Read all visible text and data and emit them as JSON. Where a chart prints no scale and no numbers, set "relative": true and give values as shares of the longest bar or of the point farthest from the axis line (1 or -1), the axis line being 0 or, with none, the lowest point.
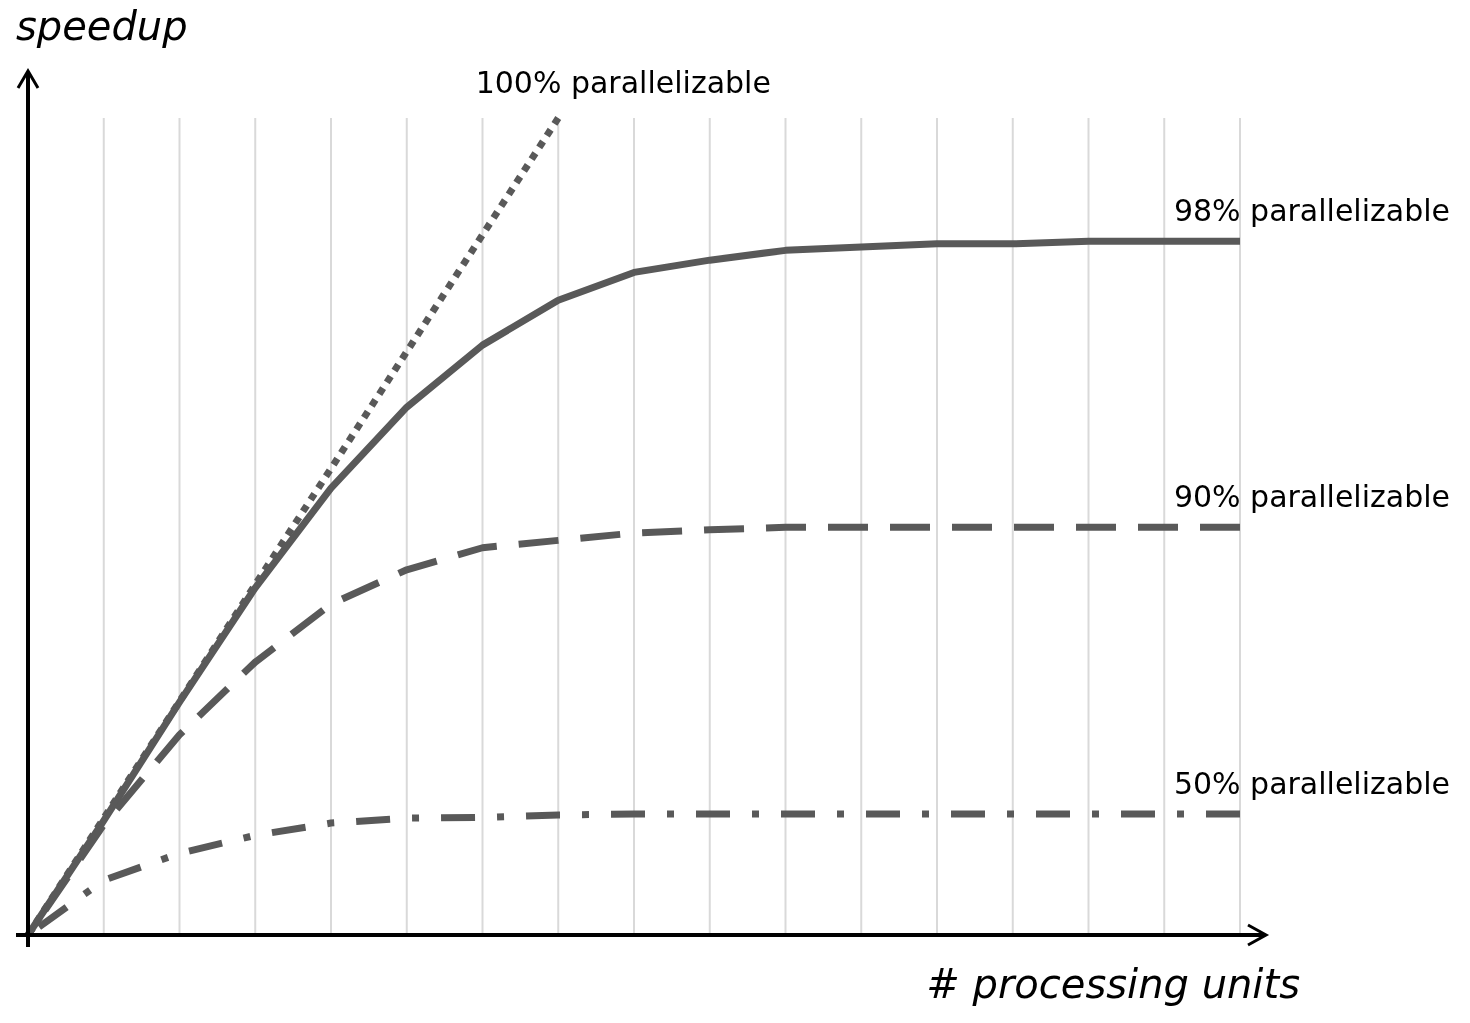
{
  "chart_data": {
    "type": "line",
    "relative": true,
    "xlabel": "# processing units",
    "ylabel": "speedup",
    "grid": "x",
    "marker": "none",
    "categories": [
      null,
      null,
      null,
      null,
      null,
      null,
      null,
      null,
      null,
      null,
      null,
      null,
      null,
      null,
      null,
      null,
      null
    ],
    "series": [
      {
        "name": "100% parallelizable",
        "color": "#595959",
        "line_style": "dotted",
        "values": [
          0,
          0.143,
          0.286,
          0.429,
          0.571,
          0.714,
          0.857,
          1,
          null,
          null,
          null,
          null,
          null,
          null,
          null,
          null,
          null
        ]
      },
      {
        "name": "98% parallelizable",
        "color": "#595959",
        "line_style": "solid",
        "values": [
          0,
          0.14,
          0.285,
          0.425,
          0.547,
          0.646,
          0.722,
          0.777,
          0.811,
          0.826,
          0.838,
          0.842,
          0.846,
          0.846,
          0.849,
          0.849,
          0.849
        ]
      },
      {
        "name": "90% parallelizable",
        "color": "#595959",
        "line_style": "dashed",
        "values": [
          0,
          0.135,
          0.245,
          0.334,
          0.405,
          0.447,
          0.474,
          0.483,
          0.492,
          0.496,
          0.499,
          0.499,
          0.499,
          0.499,
          0.499,
          0.499,
          0.499
        ]
      },
      {
        "name": "50% parallelizable",
        "color": "#595959",
        "line_style": "dashdot",
        "values": [
          0,
          0.067,
          0.1,
          0.122,
          0.137,
          0.143,
          0.144,
          0.147,
          0.148,
          0.148,
          0.148,
          0.148,
          0.148,
          0.148,
          0.148,
          0.148,
          0.148
        ]
      }
    ]
  }
}
